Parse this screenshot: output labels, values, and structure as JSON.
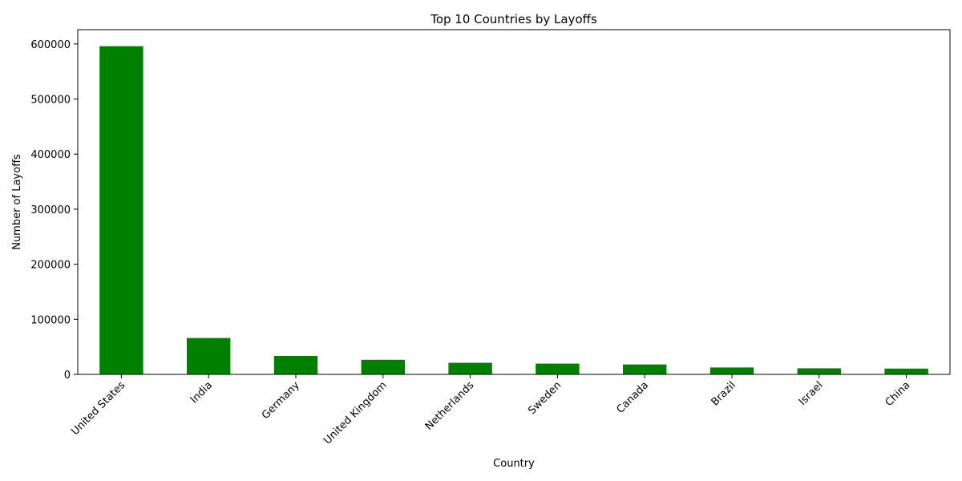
{
  "chart_data": {
    "type": "bar",
    "title": "Top 10 Countries by Layoffs",
    "xlabel": "Country",
    "ylabel": "Number of Layoffs",
    "categories": [
      "United States",
      "India",
      "Germany",
      "United Kingdom",
      "Netherlands",
      "Sweden",
      "Canada",
      "Brazil",
      "Israel",
      "China"
    ],
    "values": [
      596000,
      66000,
      33500,
      26500,
      21000,
      19500,
      18000,
      12500,
      11000,
      10500
    ],
    "ylim": [
      0,
      626000
    ],
    "yticks": [
      0,
      100000,
      200000,
      300000,
      400000,
      500000,
      600000
    ],
    "ytick_labels": [
      "0",
      "100000",
      "200000",
      "300000",
      "400000",
      "500000",
      "600000"
    ],
    "bar_color": "#008000",
    "grid": false,
    "legend": "none"
  }
}
